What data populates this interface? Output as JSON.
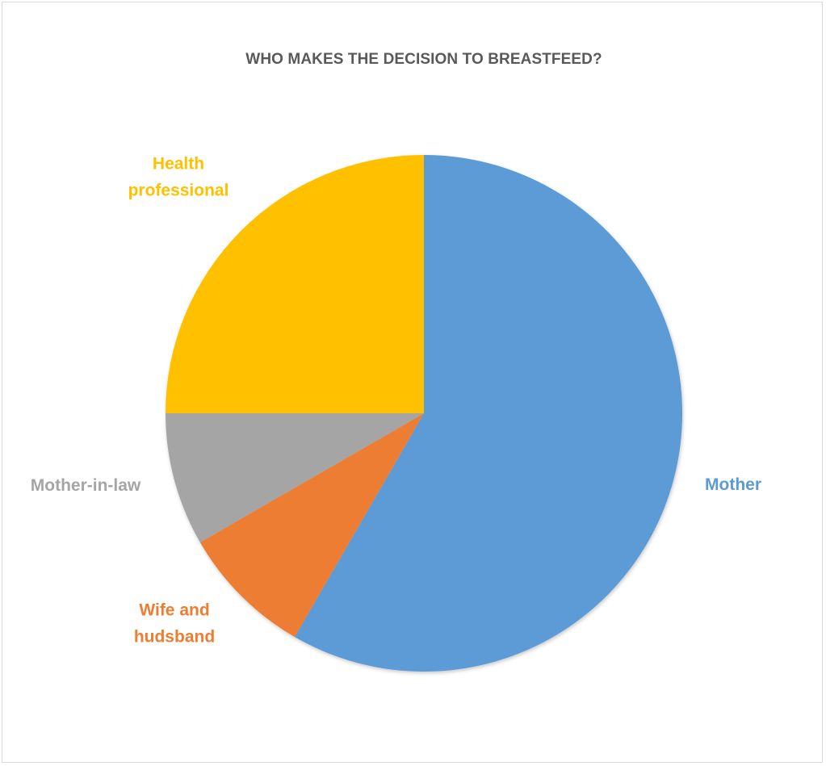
{
  "chart_data": {
    "type": "pie",
    "title": "WHO MAKES THE DECISION TO BREASTFEED?",
    "categories": [
      "Mother",
      "Wife and hudsband",
      "Mother-in-law",
      "Health professional"
    ],
    "values": [
      58.33,
      8.33,
      8.33,
      25.0
    ],
    "colors": [
      "#5B9BD5",
      "#ED7D31",
      "#A5A5A5",
      "#FFC000"
    ],
    "label_lines": [
      [
        "Mother"
      ],
      [
        "Wife and",
        "hudsband"
      ],
      [
        "Mother-in-law"
      ],
      [
        "Health",
        "professional"
      ]
    ],
    "start_angle_deg": 0,
    "direction": "clockwise",
    "legend": "none",
    "data_labels": "category-name-outside"
  }
}
